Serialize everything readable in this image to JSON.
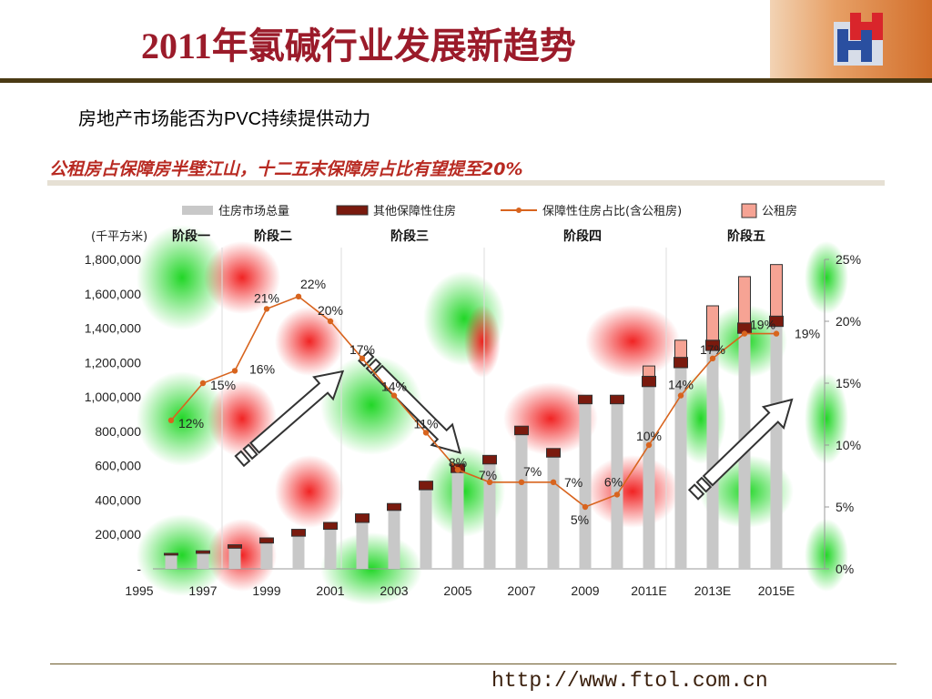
{
  "slide": {
    "title": "2011年氯碱行业发展新趋势",
    "subtitle": "房地产市场能否为PVC持续提供动力",
    "footer_url": "http://www.ftol.com.cn",
    "colors": {
      "title": "#9b1b2a",
      "accent": "#d26e2a",
      "line": "#d8641e"
    }
  },
  "chart_data": {
    "type": "bar",
    "title": "公租房占保障房半壁江山，十二五末保障房占比有望提至20%",
    "ylabel_left": "(千平方米)",
    "legend": [
      "住房市场总量",
      "其他保障性住房",
      "保障性住房占比(含公租房)",
      "公租房"
    ],
    "legend_position": "top",
    "stages": [
      "阶段一",
      "阶段二",
      "阶段三",
      "阶段四",
      "阶段五"
    ],
    "x_tick_labels": [
      "1995",
      "1997",
      "1999",
      "2001",
      "2003",
      "2005",
      "2007",
      "2009",
      "2011E",
      "2013E",
      "2015E"
    ],
    "y_left_ticks": [
      "1,800,000",
      "1,600,000",
      "1,400,000",
      "1,200,000",
      "1,000,000",
      "800,000",
      "600,000",
      "400,000",
      "200,000",
      "-"
    ],
    "y_right_ticks": [
      "25%",
      "20%",
      "15%",
      "10%",
      "5%",
      "0%"
    ],
    "ylim_left": [
      0,
      1800000
    ],
    "ylim_right": [
      0,
      25
    ],
    "categories": [
      "1996",
      "1997",
      "1998",
      "1999",
      "2000",
      "2001",
      "2002",
      "2003",
      "2004",
      "2005",
      "2006",
      "2007",
      "2008",
      "2009",
      "2010",
      "2011E",
      "2012E",
      "2013E",
      "2014E",
      "2015E"
    ],
    "series": [
      {
        "name": "住房市场总量",
        "values": [
          80000,
          90000,
          120000,
          150000,
          190000,
          230000,
          270000,
          340000,
          460000,
          560000,
          610000,
          780000,
          650000,
          960000,
          960000,
          1060000,
          1170000,
          1270000,
          1370000,
          1410000
        ]
      },
      {
        "name": "其他保障性住房",
        "values": [
          10000,
          15000,
          20000,
          30000,
          40000,
          40000,
          50000,
          40000,
          50000,
          50000,
          50000,
          50000,
          50000,
          50000,
          50000,
          60000,
          60000,
          60000,
          60000,
          60000
        ]
      },
      {
        "name": "公租房",
        "values": [
          0,
          0,
          0,
          0,
          0,
          0,
          0,
          0,
          0,
          0,
          0,
          0,
          0,
          0,
          0,
          60000,
          100000,
          200000,
          270000,
          300000
        ]
      },
      {
        "name": "保障性住房占比(含公租房)",
        "values": [
          12,
          15,
          16,
          21,
          22,
          20,
          17,
          14,
          11,
          8,
          7,
          7,
          7,
          5,
          6,
          10,
          14,
          17,
          19,
          19
        ]
      }
    ],
    "point_labels": [
      "12%",
      "15%",
      "16%",
      "21%",
      "22%",
      "20%",
      "17%",
      "14%",
      "11%",
      "8%",
      "7%",
      "7%",
      "7%",
      "5%",
      "6%",
      "10%",
      "14%",
      "17%",
      "19%",
      "19%"
    ]
  }
}
